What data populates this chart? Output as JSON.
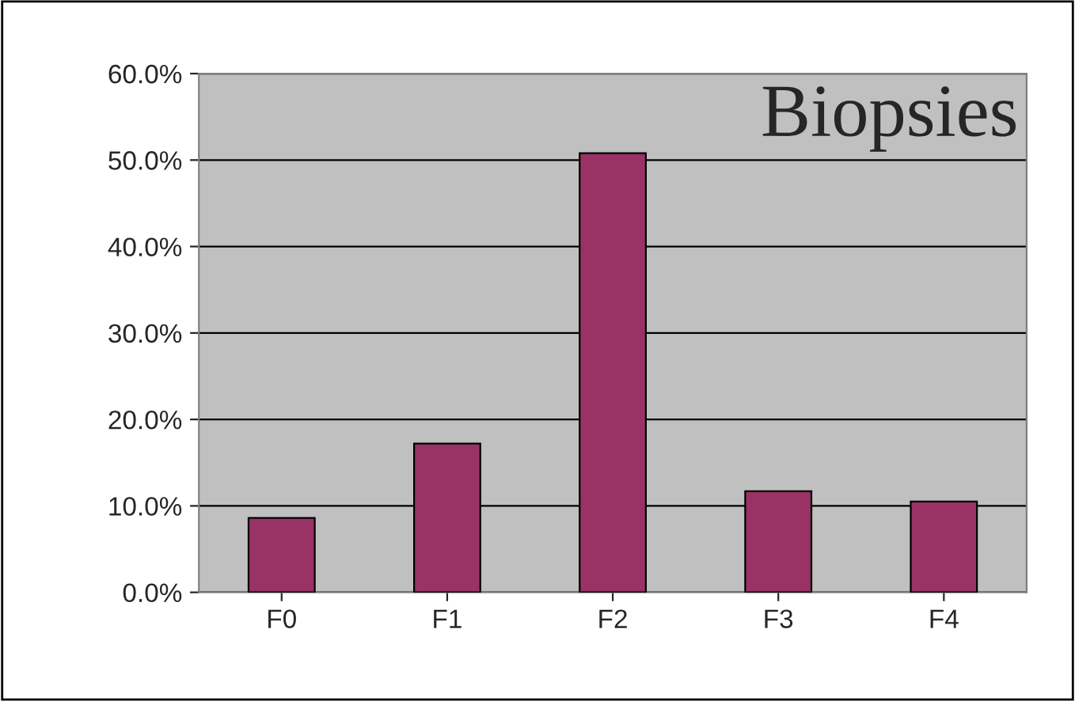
{
  "chart_data": {
    "type": "bar",
    "title": "Biopsies",
    "categories": [
      "F0",
      "F1",
      "F2",
      "F3",
      "F4"
    ],
    "values": [
      8.6,
      17.2,
      50.8,
      11.7,
      10.5
    ],
    "color": "#993366",
    "ylim": [
      0,
      60
    ],
    "yticks": [
      {
        "value": 0,
        "label": "0.0%"
      },
      {
        "value": 10,
        "label": "10.0%"
      },
      {
        "value": 20,
        "label": "20.0%"
      },
      {
        "value": 30,
        "label": "30.0%"
      },
      {
        "value": 40,
        "label": "40.0%"
      },
      {
        "value": 50,
        "label": "50.0%"
      },
      {
        "value": 60,
        "label": "60.0%"
      }
    ],
    "grid": "y",
    "legend": false
  }
}
